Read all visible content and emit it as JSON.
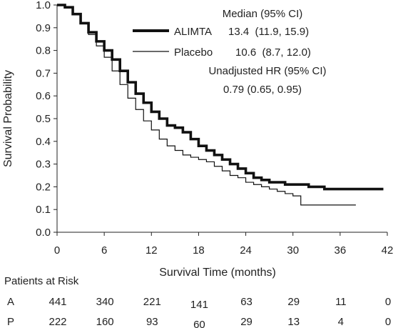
{
  "chart_data": {
    "type": "line",
    "xlabel": "Survival Time (months)",
    "ylabel": "Survival Probability",
    "xlim": [
      0,
      42
    ],
    "ylim": [
      0.0,
      1.0
    ],
    "xticks": [
      "0",
      "6",
      "12",
      "18",
      "24",
      "30",
      "36",
      "42"
    ],
    "yticks": [
      "0.0",
      "0.1",
      "0.2",
      "0.3",
      "0.4",
      "0.5",
      "0.6",
      "0.7",
      "0.8",
      "0.9",
      "1.0"
    ],
    "grid": false,
    "series": [
      {
        "name": "ALIMTA",
        "median_text": "13.4  (11.9, 15.9)",
        "color": "#111111",
        "line_width": "thick",
        "x": [
          0,
          1,
          2,
          3,
          4,
          5,
          6,
          7,
          8,
          9,
          10,
          11,
          12,
          13,
          14,
          15,
          16,
          17,
          18,
          19,
          20,
          21,
          22,
          23,
          24,
          25,
          26,
          27,
          28,
          29,
          30,
          31,
          32,
          33,
          34,
          35,
          36,
          37,
          38,
          39,
          40,
          41.5
        ],
        "y": [
          1.0,
          0.99,
          0.96,
          0.92,
          0.88,
          0.84,
          0.8,
          0.76,
          0.71,
          0.66,
          0.61,
          0.57,
          0.53,
          0.5,
          0.47,
          0.46,
          0.44,
          0.41,
          0.38,
          0.36,
          0.34,
          0.32,
          0.3,
          0.28,
          0.26,
          0.24,
          0.23,
          0.22,
          0.22,
          0.21,
          0.21,
          0.21,
          0.2,
          0.2,
          0.19,
          0.19,
          0.19,
          0.19,
          0.19,
          0.19,
          0.19,
          0.19
        ]
      },
      {
        "name": "Placebo",
        "median_text": "10.6  (8.7, 12.0)",
        "color": "#111111",
        "line_width": "thin",
        "x": [
          0,
          1,
          2,
          3,
          4,
          5,
          6,
          7,
          8,
          9,
          10,
          11,
          12,
          13,
          14,
          15,
          16,
          17,
          18,
          19,
          20,
          21,
          22,
          23,
          24,
          25,
          26,
          27,
          28,
          29,
          30,
          31,
          32,
          33,
          34,
          35,
          36,
          37,
          38
        ],
        "y": [
          1.0,
          0.99,
          0.96,
          0.92,
          0.87,
          0.82,
          0.77,
          0.71,
          0.65,
          0.59,
          0.54,
          0.49,
          0.45,
          0.41,
          0.38,
          0.36,
          0.34,
          0.33,
          0.32,
          0.31,
          0.29,
          0.27,
          0.25,
          0.24,
          0.22,
          0.21,
          0.2,
          0.19,
          0.18,
          0.17,
          0.16,
          0.12,
          0.12,
          0.12,
          0.12,
          0.12,
          0.12,
          0.12,
          0.12
        ]
      }
    ],
    "legend": {
      "placement": "top-right",
      "header": "Median (95% CI)",
      "hr_label": "Unadjusted HR (95% CI)",
      "hr_value": "0.79 (0.65, 0.95)"
    },
    "risk_table": {
      "title": "Patients at Risk",
      "rows": [
        {
          "label": "A",
          "values": [
            "441",
            "340",
            "221",
            "141",
            "63",
            "29",
            "11",
            "0"
          ]
        },
        {
          "label": "P",
          "values": [
            "222",
            "160",
            "93",
            "60",
            "29",
            "13",
            "4",
            "0"
          ]
        }
      ]
    }
  }
}
